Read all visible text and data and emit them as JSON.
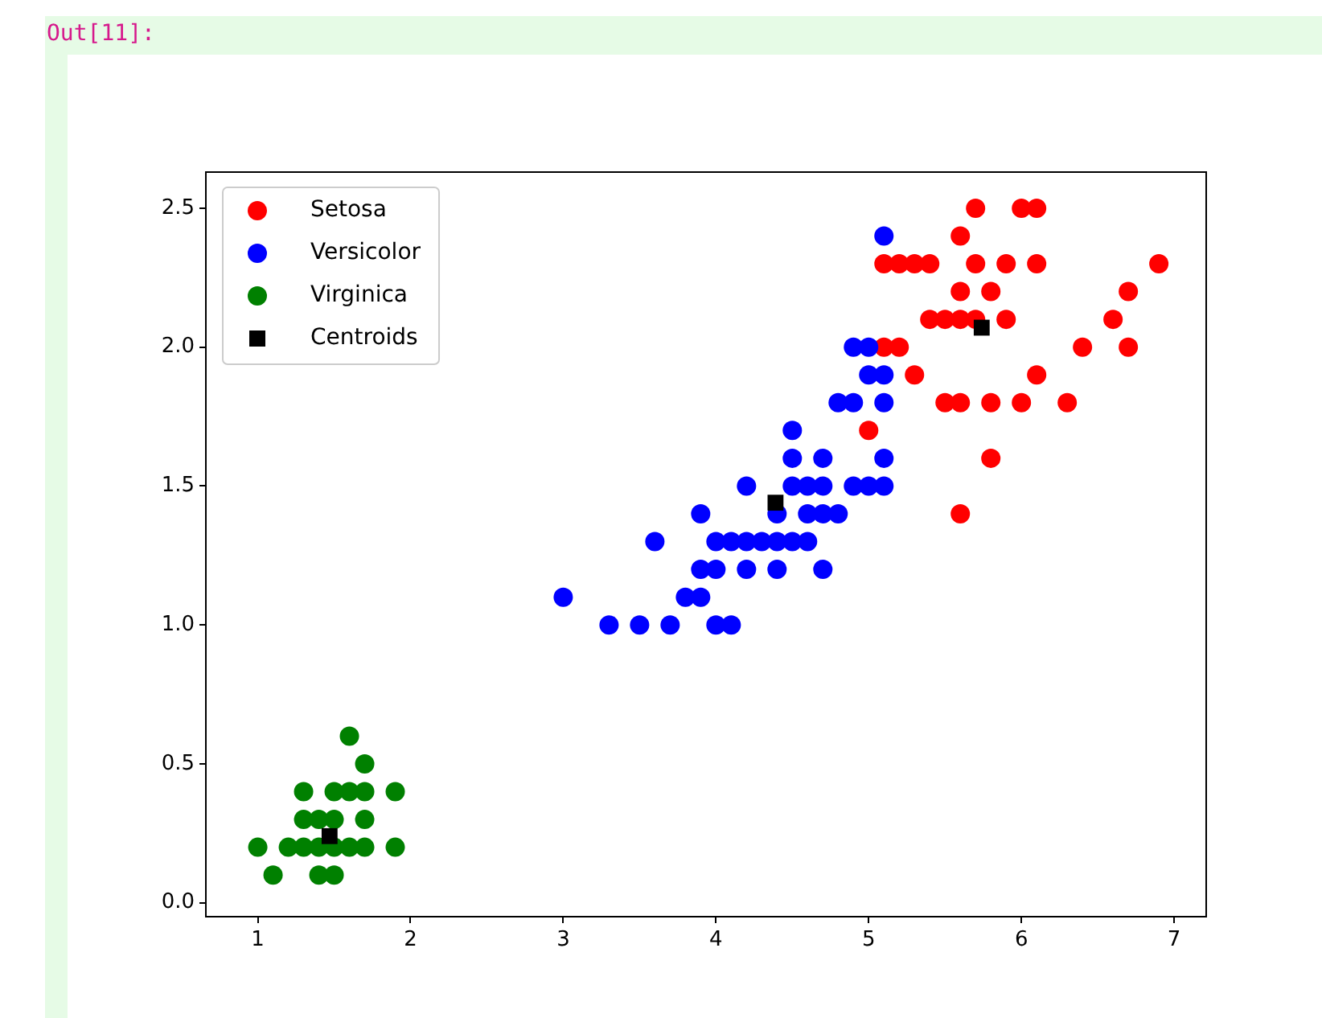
{
  "chart_data": {
    "type": "scatter",
    "annotations": [
      "Out[11]:"
    ],
    "legend": "top left",
    "grid": false,
    "xlim": [
      0.66,
      7.21
    ],
    "xticks": [
      1,
      2,
      3,
      4,
      5,
      6,
      7
    ],
    "ylim": [
      -0.05,
      2.63
    ],
    "yticks": [
      {
        "value": 0,
        "label": "0.0"
      },
      {
        "value": 0.5,
        "label": "0.5"
      },
      {
        "value": 1,
        "label": "1.0"
      },
      {
        "value": 1.5,
        "label": "1.5"
      },
      {
        "value": 2,
        "label": "2.0"
      },
      {
        "value": 2.5,
        "label": "2.5"
      }
    ],
    "series": [
      {
        "name": "Setosa",
        "color": "#ff0000",
        "marker": "circle",
        "x": [
          5.7,
          6.0,
          6.1,
          5.6,
          5.1,
          5.2,
          5.3,
          5.4,
          5.7,
          5.9,
          6.1,
          6.9,
          5.6,
          5.8,
          6.7,
          5.4,
          5.5,
          5.6,
          5.7,
          5.9,
          6.6,
          5.1,
          5.2,
          6.4,
          6.7,
          5.3,
          6.1,
          5.5,
          5.6,
          5.8,
          6.0,
          6.3,
          5.0,
          5.8,
          5.6
        ],
        "values": [
          2.5,
          2.5,
          2.5,
          2.4,
          2.3,
          2.3,
          2.3,
          2.3,
          2.3,
          2.3,
          2.3,
          2.3,
          2.2,
          2.2,
          2.2,
          2.1,
          2.1,
          2.1,
          2.1,
          2.1,
          2.1,
          2.0,
          2.0,
          2.0,
          2.0,
          1.9,
          1.9,
          1.8,
          1.8,
          1.8,
          1.8,
          1.8,
          1.7,
          1.6,
          1.4
        ]
      },
      {
        "name": "Versicolor",
        "color": "#0000ff",
        "marker": "circle",
        "x": [
          5.1,
          4.9,
          5.0,
          5.0,
          5.1,
          4.8,
          4.9,
          5.1,
          4.5,
          4.5,
          4.7,
          5.1,
          4.2,
          4.5,
          4.6,
          4.7,
          4.9,
          5.0,
          5.1,
          3.9,
          4.4,
          4.6,
          4.7,
          4.8,
          3.6,
          4.0,
          4.1,
          4.2,
          4.3,
          4.4,
          4.5,
          4.6,
          3.9,
          4.0,
          4.2,
          4.4,
          4.7,
          3.0,
          3.8,
          3.9,
          3.3,
          3.5,
          3.7,
          4.0,
          4.1
        ],
        "values": [
          2.4,
          2.0,
          2.0,
          1.9,
          1.9,
          1.8,
          1.8,
          1.8,
          1.7,
          1.6,
          1.6,
          1.6,
          1.5,
          1.5,
          1.5,
          1.5,
          1.5,
          1.5,
          1.5,
          1.4,
          1.4,
          1.4,
          1.4,
          1.4,
          1.3,
          1.3,
          1.3,
          1.3,
          1.3,
          1.3,
          1.3,
          1.3,
          1.2,
          1.2,
          1.2,
          1.2,
          1.2,
          1.1,
          1.1,
          1.1,
          1.0,
          1.0,
          1.0,
          1.0,
          1.0
        ]
      },
      {
        "name": "Virginica",
        "color": "#008000",
        "marker": "circle",
        "x": [
          1.6,
          1.7,
          1.3,
          1.5,
          1.6,
          1.7,
          1.9,
          1.3,
          1.4,
          1.5,
          1.7,
          1.0,
          1.2,
          1.3,
          1.4,
          1.5,
          1.6,
          1.7,
          1.9,
          1.1,
          1.4,
          1.5
        ],
        "values": [
          0.6,
          0.5,
          0.4,
          0.4,
          0.4,
          0.4,
          0.4,
          0.3,
          0.3,
          0.3,
          0.3,
          0.2,
          0.2,
          0.2,
          0.2,
          0.2,
          0.2,
          0.2,
          0.2,
          0.1,
          0.1,
          0.1
        ]
      },
      {
        "name": "Centroids",
        "color": "#000000",
        "marker": "square",
        "x": [
          5.74,
          4.39,
          1.47
        ],
        "values": [
          2.07,
          1.44,
          0.24
        ]
      }
    ]
  }
}
